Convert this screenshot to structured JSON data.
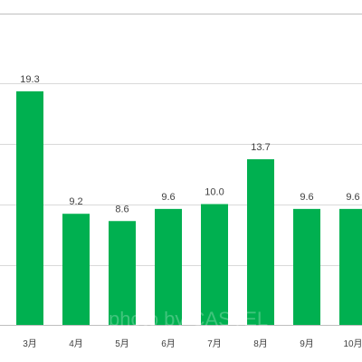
{
  "chart_data": {
    "type": "bar",
    "categories": [
      "3月",
      "4月",
      "5月",
      "6月",
      "7月",
      "8月",
      "9月",
      "10月"
    ],
    "values": [
      19.3,
      9.2,
      8.6,
      9.6,
      10.0,
      13.7,
      9.6,
      9.6
    ],
    "value_labels": [
      "19.3",
      "9.2",
      "8.6",
      "9.6",
      "10.0",
      "13.7",
      "9.6",
      "9.6"
    ],
    "ylim": [
      0,
      20
    ],
    "grid": true,
    "bar_color": "#00b050",
    "grid_color": "#d9d9d9",
    "axis_color": "#bfbfbf"
  },
  "watermark": "photo by CASTEL"
}
